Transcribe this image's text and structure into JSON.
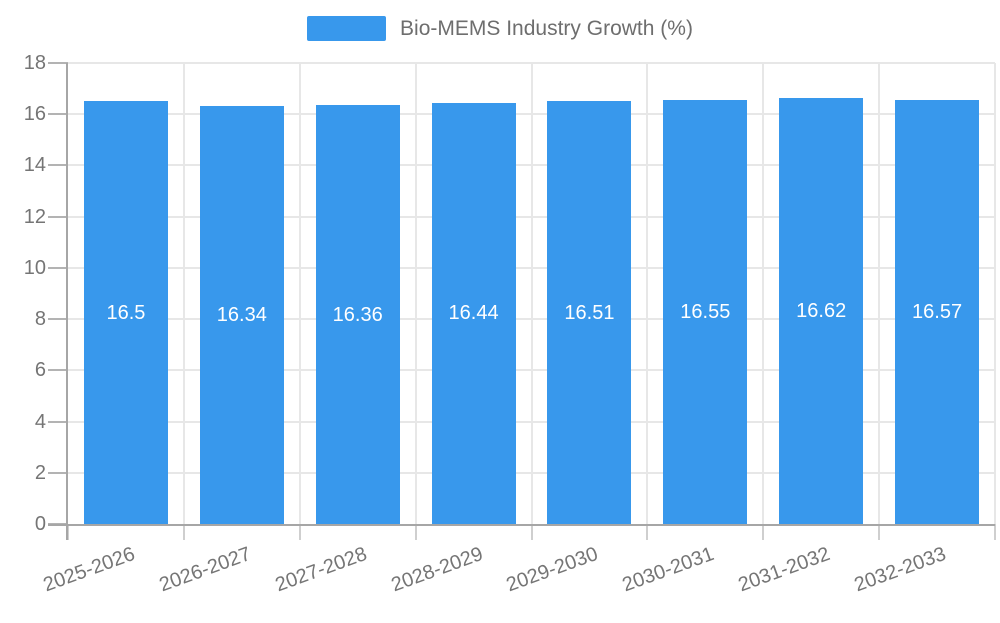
{
  "chart_data": {
    "type": "bar",
    "title": "Bio-MEMS Industry Growth (%)",
    "legend": {
      "items": [
        "Bio-MEMS Industry Growth (%)"
      ],
      "position": "top-center"
    },
    "categories": [
      "2025-2026",
      "2026-2027",
      "2027-2028",
      "2028-2029",
      "2029-2030",
      "2030-2031",
      "2031-2032",
      "2032-2033"
    ],
    "series": [
      {
        "name": "Bio-MEMS Industry Growth (%)",
        "values": [
          16.5,
          16.34,
          16.36,
          16.44,
          16.51,
          16.55,
          16.62,
          16.57
        ],
        "value_labels": [
          "16.5",
          "16.34",
          "16.36",
          "16.44",
          "16.51",
          "16.55",
          "16.62",
          "16.57"
        ]
      }
    ],
    "xlabel": "",
    "ylabel": "",
    "ylim": [
      0,
      18
    ],
    "yticks": [
      0,
      2,
      4,
      6,
      8,
      10,
      12,
      14,
      16,
      18
    ],
    "grid": "on",
    "x_label_rotation_deg": -20,
    "value_label_position": "inside-center",
    "colors": {
      "bar": "#3898ec",
      "value_label": "#ffffff",
      "axis_text": "#757575",
      "legend_text": "#6e6e6e",
      "axis_line": "#a6a6a6",
      "grid_line": "#e7e7e7"
    }
  }
}
